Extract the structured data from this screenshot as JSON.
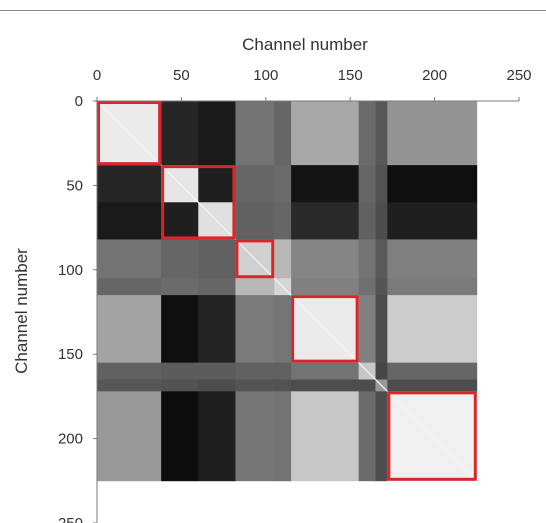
{
  "chart_data": {
    "type": "heatmap",
    "title": "",
    "xlabel": "Channel number",
    "ylabel": "Channel number",
    "xlim": [
      0,
      250
    ],
    "ylim": [
      0,
      250
    ],
    "x_ticks": [
      "0",
      "50",
      "100",
      "150",
      "200",
      "250"
    ],
    "y_ticks": [
      "0",
      "50",
      "100",
      "150",
      "200",
      "250"
    ],
    "x_axis_position": "top",
    "y_axis_inverted": true,
    "matrix_size": 225,
    "colormap": "grayscale",
    "group_edges": [
      0,
      38,
      60,
      82,
      105,
      115,
      155,
      165,
      172,
      225
    ],
    "block_values": [
      [
        0.92,
        0.15,
        0.1,
        0.45,
        0.4,
        0.66,
        0.42,
        0.34,
        0.58
      ],
      [
        0.15,
        0.9,
        0.12,
        0.4,
        0.42,
        0.08,
        0.4,
        0.32,
        0.06
      ],
      [
        0.1,
        0.12,
        0.88,
        0.38,
        0.4,
        0.16,
        0.38,
        0.3,
        0.12
      ],
      [
        0.45,
        0.4,
        0.38,
        0.82,
        0.72,
        0.52,
        0.45,
        0.35,
        0.5
      ],
      [
        0.4,
        0.42,
        0.4,
        0.72,
        0.84,
        0.5,
        0.44,
        0.33,
        0.48
      ],
      [
        0.64,
        0.06,
        0.14,
        0.48,
        0.46,
        0.92,
        0.5,
        0.3,
        0.8
      ],
      [
        0.38,
        0.36,
        0.36,
        0.38,
        0.38,
        0.45,
        0.78,
        0.28,
        0.4
      ],
      [
        0.34,
        0.32,
        0.3,
        0.33,
        0.32,
        0.3,
        0.3,
        0.6,
        0.3
      ],
      [
        0.6,
        0.05,
        0.12,
        0.46,
        0.45,
        0.78,
        0.42,
        0.3,
        0.94
      ]
    ],
    "highlight_color": "#d9262b",
    "highlighted_clusters": [
      {
        "start": 0,
        "end": 38
      },
      {
        "start": 38,
        "end": 82
      },
      {
        "start": 82,
        "end": 105
      },
      {
        "start": 115,
        "end": 155
      },
      {
        "start": 172,
        "end": 225
      }
    ]
  }
}
